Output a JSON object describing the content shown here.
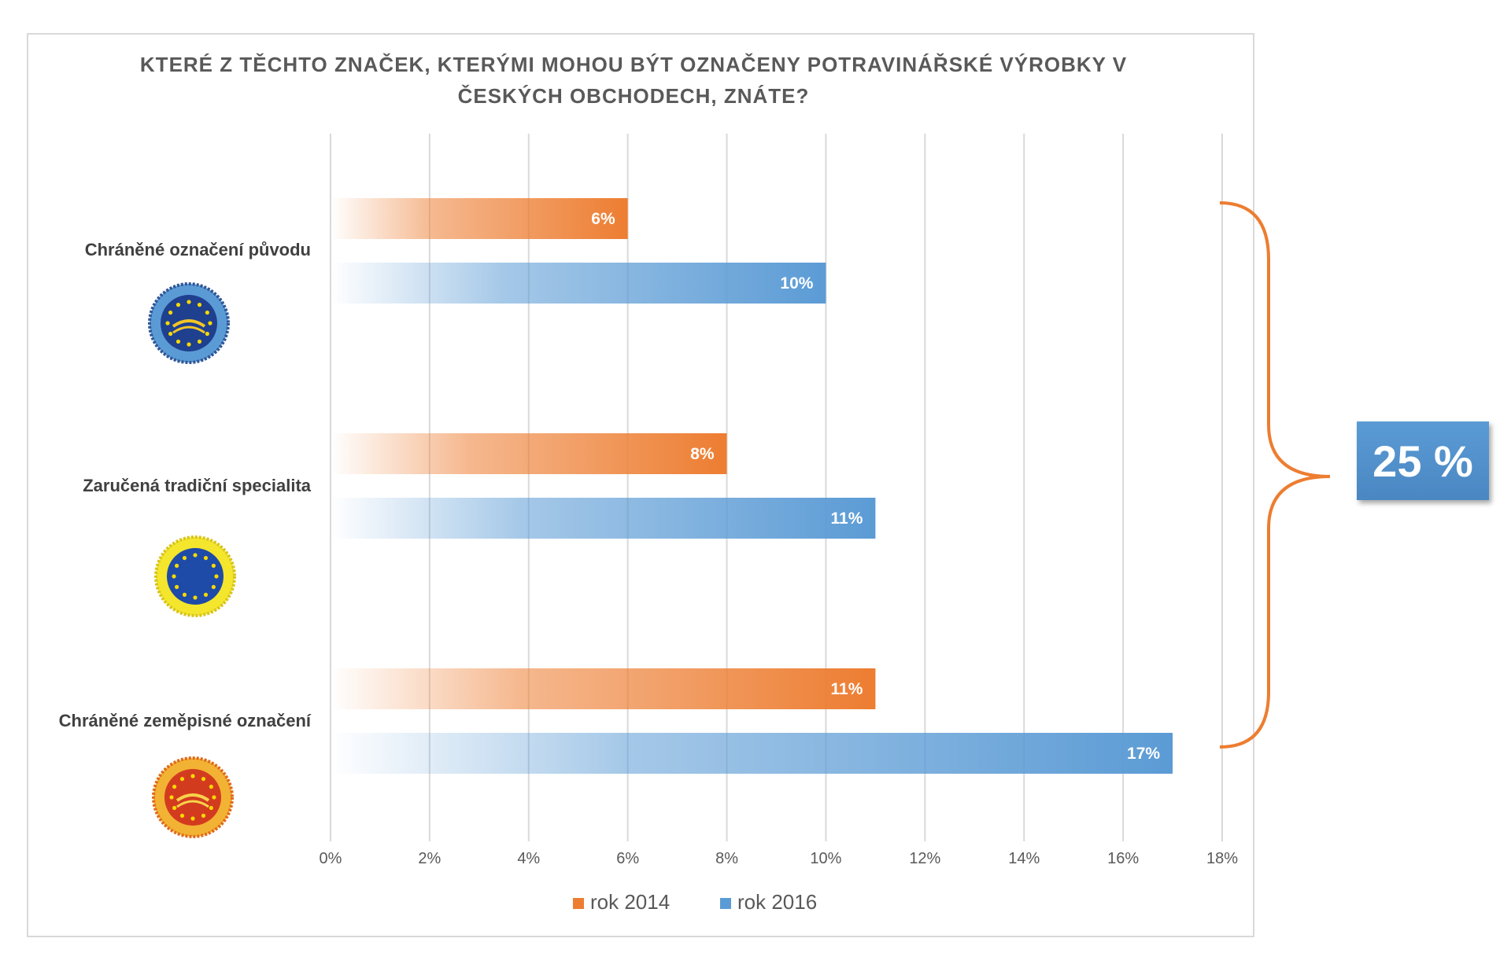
{
  "chart_data": {
    "type": "bar",
    "orientation": "horizontal",
    "title": "KTERÉ Z TĚCHTO ZNAČEK, KTERÝMI MOHOU BÝT OZNAČENY POTRAVINÁŘSKÉ VÝROBKY V ČESKÝCH OBCHODECH, ZNÁTE?",
    "title_lines": [
      "KTERÉ Z TĚCHTO ZNAČEK, KTERÝMI MOHOU BÝT OZNAČENY POTRAVINÁŘSKÉ VÝROBKY V",
      "ČESKÝCH OBCHODECH, ZNÁTE?"
    ],
    "categories": [
      "Chráněné označení původu",
      "Zaručená tradiční specialita",
      "Chráněné zeměpisné označení"
    ],
    "category_icons": [
      "eu-pdo-seal-icon",
      "eu-tsg-seal-icon",
      "eu-pgi-seal-icon"
    ],
    "series": [
      {
        "name": "rok 2014",
        "values": [
          6,
          8,
          11
        ],
        "labels": [
          "6%",
          "8%",
          "11%"
        ],
        "color": "#ed7d31"
      },
      {
        "name": "rok 2016",
        "values": [
          10,
          11,
          17
        ],
        "labels": [
          "10%",
          "11%",
          "17%"
        ],
        "color": "#5b9bd5"
      }
    ],
    "xlim": [
      0,
      18
    ],
    "x_ticks": [
      "0%",
      "2%",
      "4%",
      "6%",
      "8%",
      "10%",
      "12%",
      "14%",
      "16%",
      "18%"
    ],
    "grid": true,
    "legend_position": "bottom",
    "annotation": {
      "text": "25 %",
      "bracket_color": "#ed7d31",
      "box_color": "#5b9bd5"
    }
  }
}
